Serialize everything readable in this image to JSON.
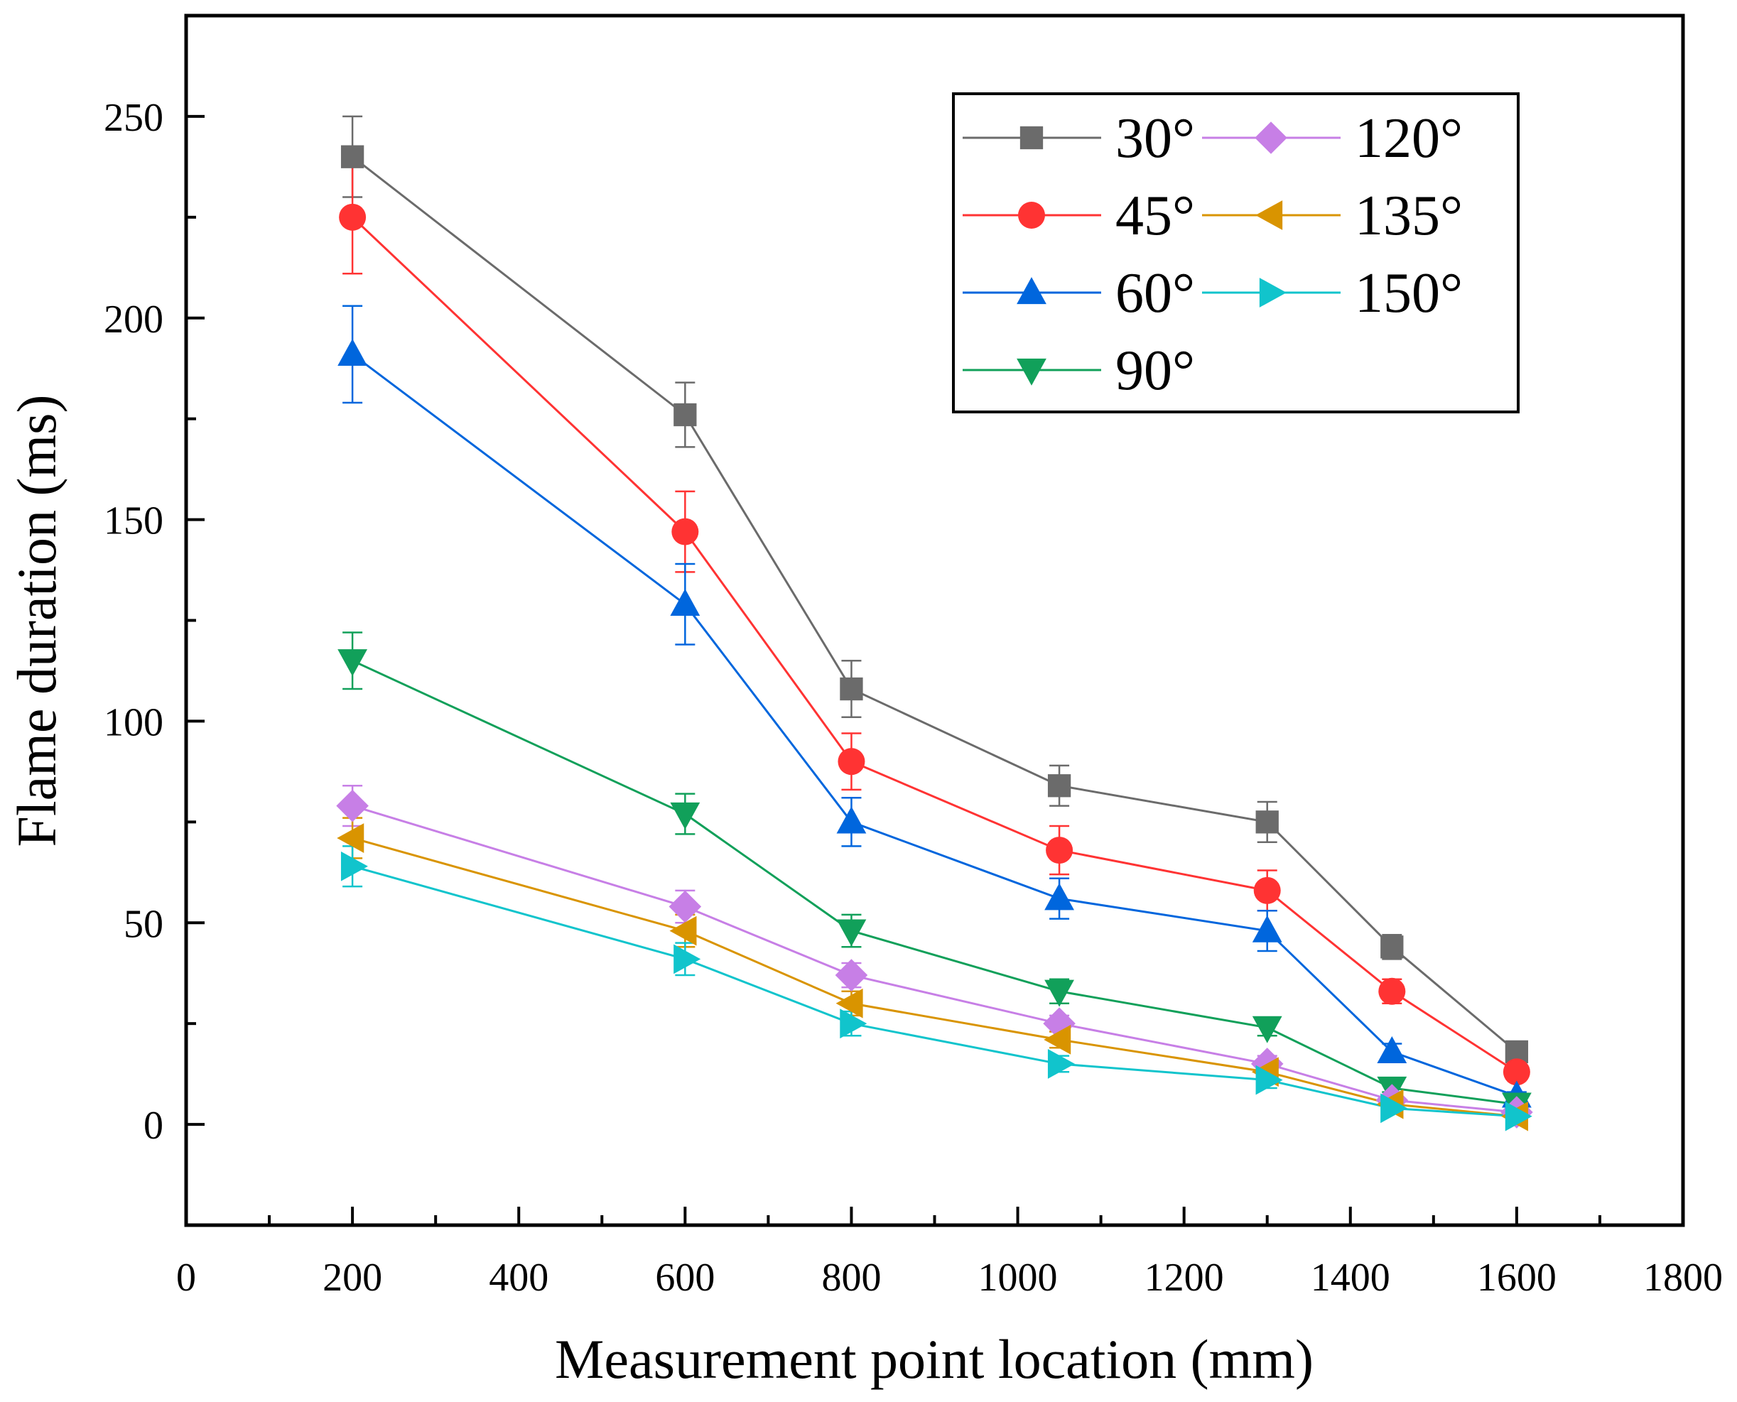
{
  "chart_data": {
    "type": "line",
    "title": "",
    "xlabel": "Measurement point location (mm)",
    "ylabel": "Flame duration (ms)",
    "xlim": [
      0,
      1800
    ],
    "ylim": [
      -25,
      275
    ],
    "xticks": [
      0,
      200,
      400,
      600,
      800,
      1000,
      1200,
      1400,
      1600,
      1800
    ],
    "yticks": [
      0,
      50,
      100,
      150,
      200,
      250
    ],
    "x": [
      200,
      600,
      800,
      1050,
      1300,
      1450,
      1600
    ],
    "grid": false,
    "legend_position": "top-right",
    "series": [
      {
        "name": "30°",
        "color": "#6b6b6b",
        "marker": "square",
        "values": [
          240,
          176,
          108,
          84,
          75,
          44,
          18
        ],
        "errors": [
          10,
          8,
          7,
          5,
          5,
          3,
          2
        ]
      },
      {
        "name": "45°",
        "color": "#ff3333",
        "marker": "circle",
        "values": [
          225,
          147,
          90,
          68,
          58,
          33,
          13
        ],
        "errors": [
          14,
          10,
          7,
          6,
          5,
          3,
          2
        ]
      },
      {
        "name": "60°",
        "color": "#0066dd",
        "marker": "triangle-up",
        "values": [
          191,
          129,
          75,
          56,
          48,
          18,
          7
        ],
        "errors": [
          12,
          10,
          6,
          5,
          5,
          2,
          1
        ]
      },
      {
        "name": "90°",
        "color": "#11a05a",
        "marker": "triangle-down",
        "values": [
          115,
          77,
          48,
          33,
          24,
          9,
          5
        ],
        "errors": [
          7,
          5,
          4,
          3,
          2,
          1,
          1
        ]
      },
      {
        "name": "120°",
        "color": "#c77fe6",
        "marker": "diamond",
        "values": [
          79,
          54,
          37,
          25,
          15,
          6,
          3
        ],
        "errors": [
          5,
          4,
          3,
          2,
          2,
          1,
          1
        ]
      },
      {
        "name": "135°",
        "color": "#d99400",
        "marker": "triangle-left",
        "values": [
          71,
          48,
          30,
          21,
          13,
          5,
          2
        ],
        "errors": [
          5,
          4,
          3,
          2,
          2,
          1,
          1
        ]
      },
      {
        "name": "150°",
        "color": "#11c4cc",
        "marker": "triangle-right",
        "values": [
          64,
          41,
          25,
          15,
          11,
          4,
          2
        ],
        "errors": [
          5,
          4,
          3,
          2,
          2,
          1,
          1
        ]
      }
    ]
  }
}
